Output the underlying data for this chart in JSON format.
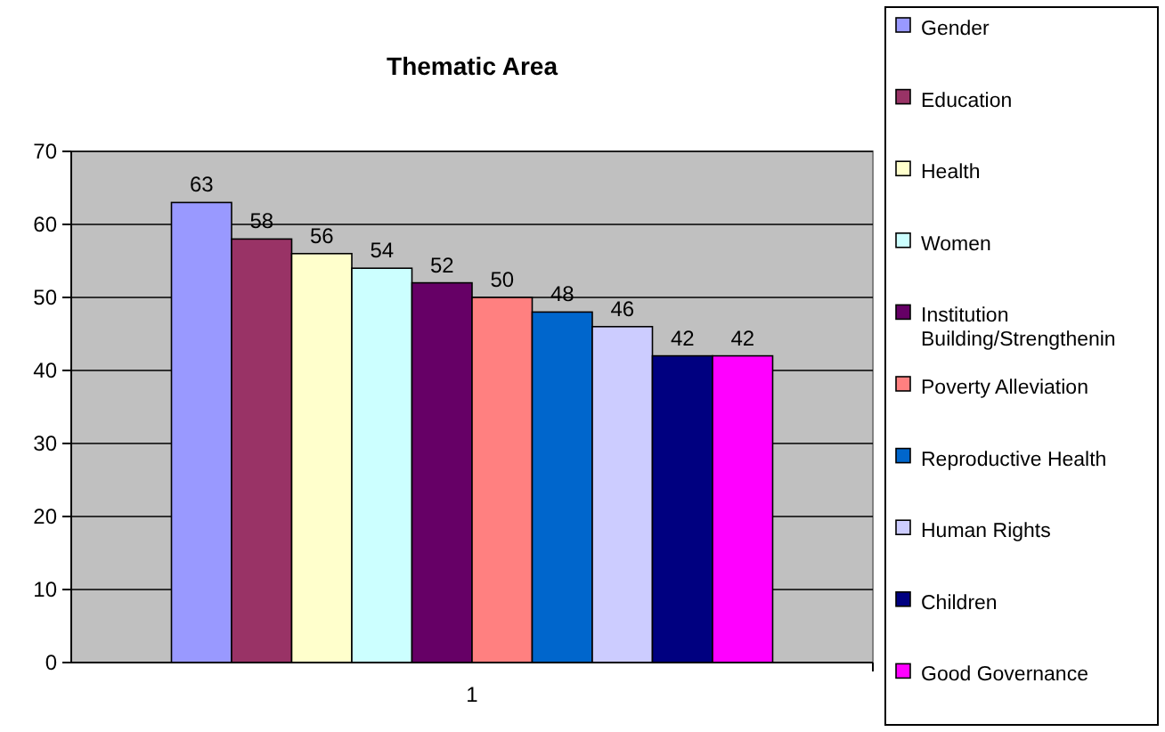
{
  "chart_data": {
    "type": "bar",
    "title": "Thematic Area",
    "categories": [
      "1"
    ],
    "series": [
      {
        "name": "Gender",
        "color": "#9999ff",
        "values": [
          63
        ]
      },
      {
        "name": "Education",
        "color": "#993366",
        "values": [
          58
        ]
      },
      {
        "name": "Health",
        "color": "#ffffcc",
        "values": [
          56
        ]
      },
      {
        "name": "Women",
        "color": "#ccffff",
        "values": [
          54
        ]
      },
      {
        "name": "Institution Building/Strengthenin",
        "color": "#660066",
        "values": [
          52
        ]
      },
      {
        "name": "Poverty Alleviation",
        "color": "#ff8080",
        "values": [
          50
        ]
      },
      {
        "name": "Reproductive Health",
        "color": "#0066cc",
        "values": [
          48
        ]
      },
      {
        "name": "Human Rights",
        "color": "#ccccff",
        "values": [
          46
        ]
      },
      {
        "name": "Children",
        "color": "#000080",
        "values": [
          42
        ]
      },
      {
        "name": "Good Governance",
        "color": "#ff00ff",
        "values": [
          42
        ]
      }
    ],
    "ylim": [
      0,
      70
    ],
    "yticks": [
      0,
      10,
      20,
      30,
      40,
      50,
      60,
      70
    ],
    "grid": "y",
    "legend": "right",
    "data_labels": true
  }
}
